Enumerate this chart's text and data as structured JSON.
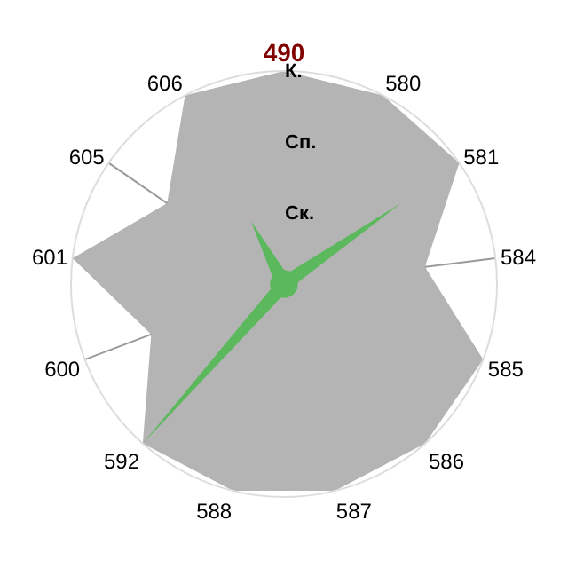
{
  "chart_data": {
    "type": "radar",
    "relative": false,
    "categories": [
      "490",
      "580",
      "581",
      "584",
      "585",
      "586",
      "587",
      "588",
      "592",
      "600",
      "601",
      "605",
      "606"
    ],
    "ylim": [
      0,
      3
    ],
    "yticks": [
      {
        "value": 1,
        "label": "Ск."
      },
      {
        "value": 2,
        "label": "Сп."
      },
      {
        "value": 3,
        "label": "К."
      }
    ],
    "grid": true,
    "series": [
      {
        "color": "#b4b4b4",
        "values": [
          3,
          3,
          3,
          2,
          3,
          3,
          3,
          3,
          3,
          2,
          3,
          2,
          3
        ]
      },
      {
        "color": "#5cb85c",
        "values": [
          0.2,
          0.2,
          2,
          0.2,
          0.2,
          0.2,
          0.2,
          0.2,
          3,
          0.2,
          0.2,
          0.2,
          1
        ]
      }
    ]
  }
}
